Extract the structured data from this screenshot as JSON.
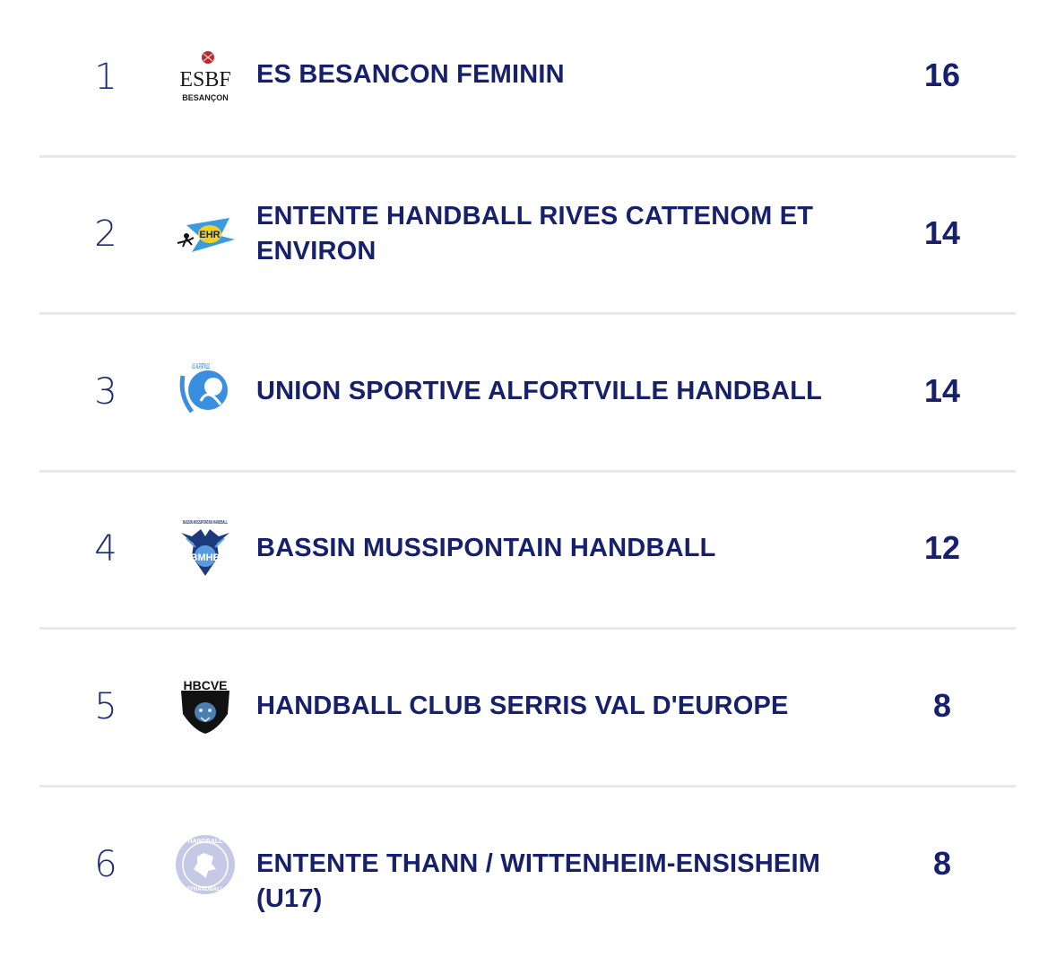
{
  "colors": {
    "text": "#17206b",
    "divider": "#e6e8f0"
  },
  "standings": [
    {
      "rank": "1",
      "team": "ES BESANCON FEMININ",
      "points": "16",
      "logo": "esbf-logo",
      "logo_text": "ESBF",
      "logo_sub": "BESANÇON"
    },
    {
      "rank": "2",
      "team": "ENTENTE HANDBALL RIVES CATTENOM ET ENVIRON",
      "points": "14",
      "logo": "ehr-logo",
      "logo_text": "EHR"
    },
    {
      "rank": "3",
      "team": "UNION SPORTIVE ALFORTVILLE HANDBALL",
      "points": "14",
      "logo": "us-alfortville-logo",
      "logo_text": "U.S. ALFORTVILLE"
    },
    {
      "rank": "4",
      "team": "BASSIN MUSSIPONTAIN HANDBALL",
      "points": "12",
      "logo": "bmhb-logo",
      "logo_text": "BMHB",
      "logo_sub": "BASSIN MUSSIPONTAIN HANDBALL"
    },
    {
      "rank": "5",
      "team": "HANDBALL CLUB SERRIS VAL D'EUROPE",
      "points": "8",
      "logo": "hbcve-logo",
      "logo_text": "HBCVE"
    },
    {
      "rank": "6",
      "team": "ENTENTE THANN / WITTENHEIM-ENSISHEIM (U17)",
      "points": "8",
      "logo": "ffhandball-logo",
      "logo_text": "HANDBALL",
      "logo_sub": "FFHANDBALL"
    }
  ]
}
